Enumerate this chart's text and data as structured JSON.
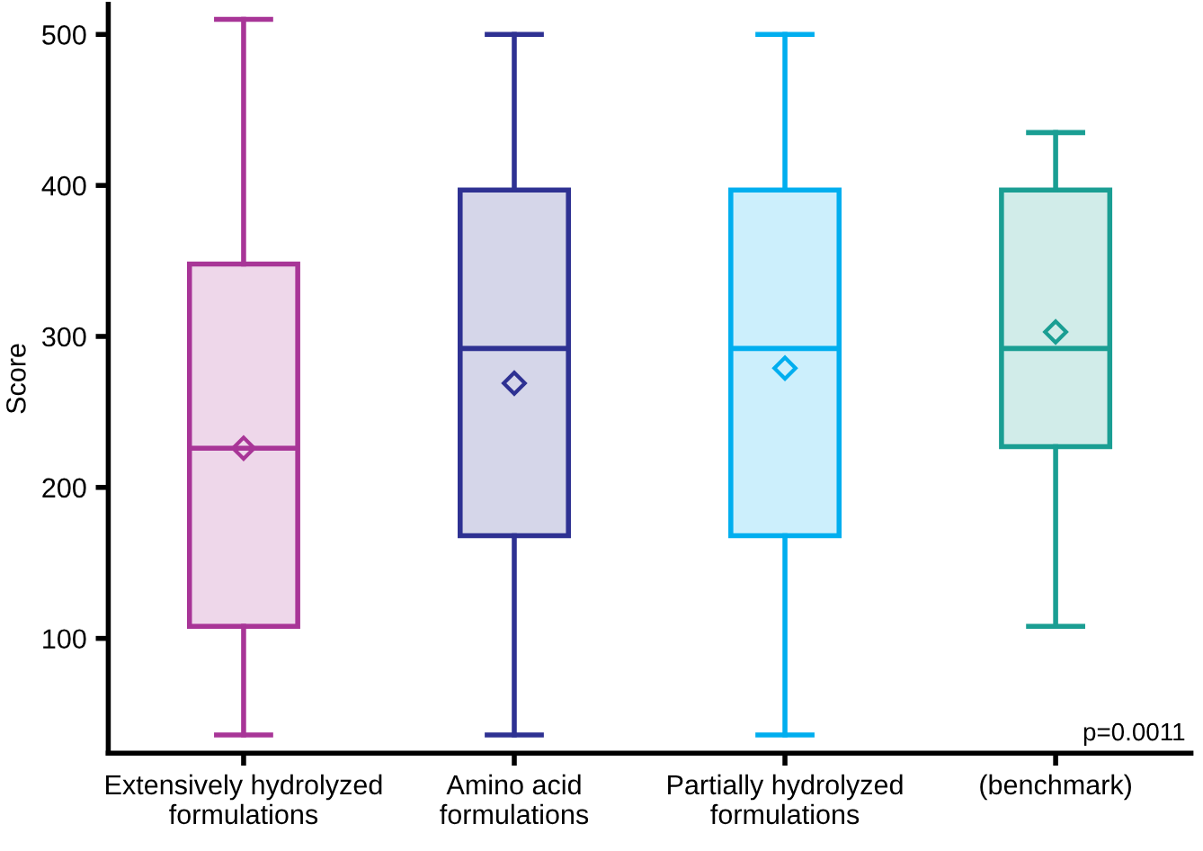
{
  "chart_data": {
    "type": "box",
    "ylabel": "Score",
    "categories": [
      "Extensively hydrolyzed\nformulations",
      "Amino acid\nformulations",
      "Partially hydrolyzed\nformulations",
      "(benchmark)"
    ],
    "colors": [
      "#a83597",
      "#2e3192",
      "#00aeef",
      "#1a9e93"
    ],
    "boxes": [
      {
        "low": 36,
        "q1": 108,
        "median": 226,
        "q3": 348,
        "high": 510,
        "mean": 226
      },
      {
        "low": 36,
        "q1": 168,
        "median": 292,
        "q3": 397,
        "high": 500,
        "mean": 269
      },
      {
        "low": 36,
        "q1": 168,
        "median": 292,
        "q3": 397,
        "high": 500,
        "mean": 279
      },
      {
        "low": 108,
        "q1": 227,
        "median": 292,
        "q3": 397,
        "high": 435,
        "mean": 303
      }
    ],
    "ylim": [
      24,
      520
    ],
    "yticks": [
      100,
      200,
      300,
      400,
      500
    ],
    "grid": false,
    "annotations": [
      "p=0.0011"
    ]
  }
}
